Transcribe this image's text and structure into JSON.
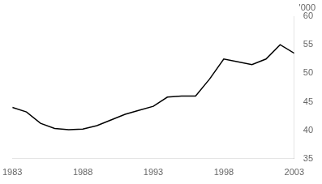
{
  "chart_data": {
    "type": "line",
    "x": [
      1983,
      1984,
      1985,
      1986,
      1987,
      1988,
      1989,
      1990,
      1991,
      1992,
      1993,
      1994,
      1995,
      1996,
      1997,
      1998,
      1999,
      2000,
      2001,
      2002,
      2003
    ],
    "values": [
      44.0,
      43.2,
      41.2,
      40.3,
      40.1,
      40.2,
      40.8,
      41.8,
      42.8,
      43.5,
      44.2,
      45.8,
      46.0,
      46.0,
      49.0,
      52.5,
      52.0,
      51.5,
      52.5,
      55.0,
      53.5
    ],
    "color": "#000000",
    "xlim": [
      1983,
      2003
    ],
    "ylim": [
      35,
      60
    ],
    "xticks": [
      1983,
      1988,
      1993,
      1998,
      2003
    ],
    "yticks": [
      35,
      40,
      45,
      50,
      55,
      60
    ],
    "annotation": "'000",
    "grid": false
  }
}
